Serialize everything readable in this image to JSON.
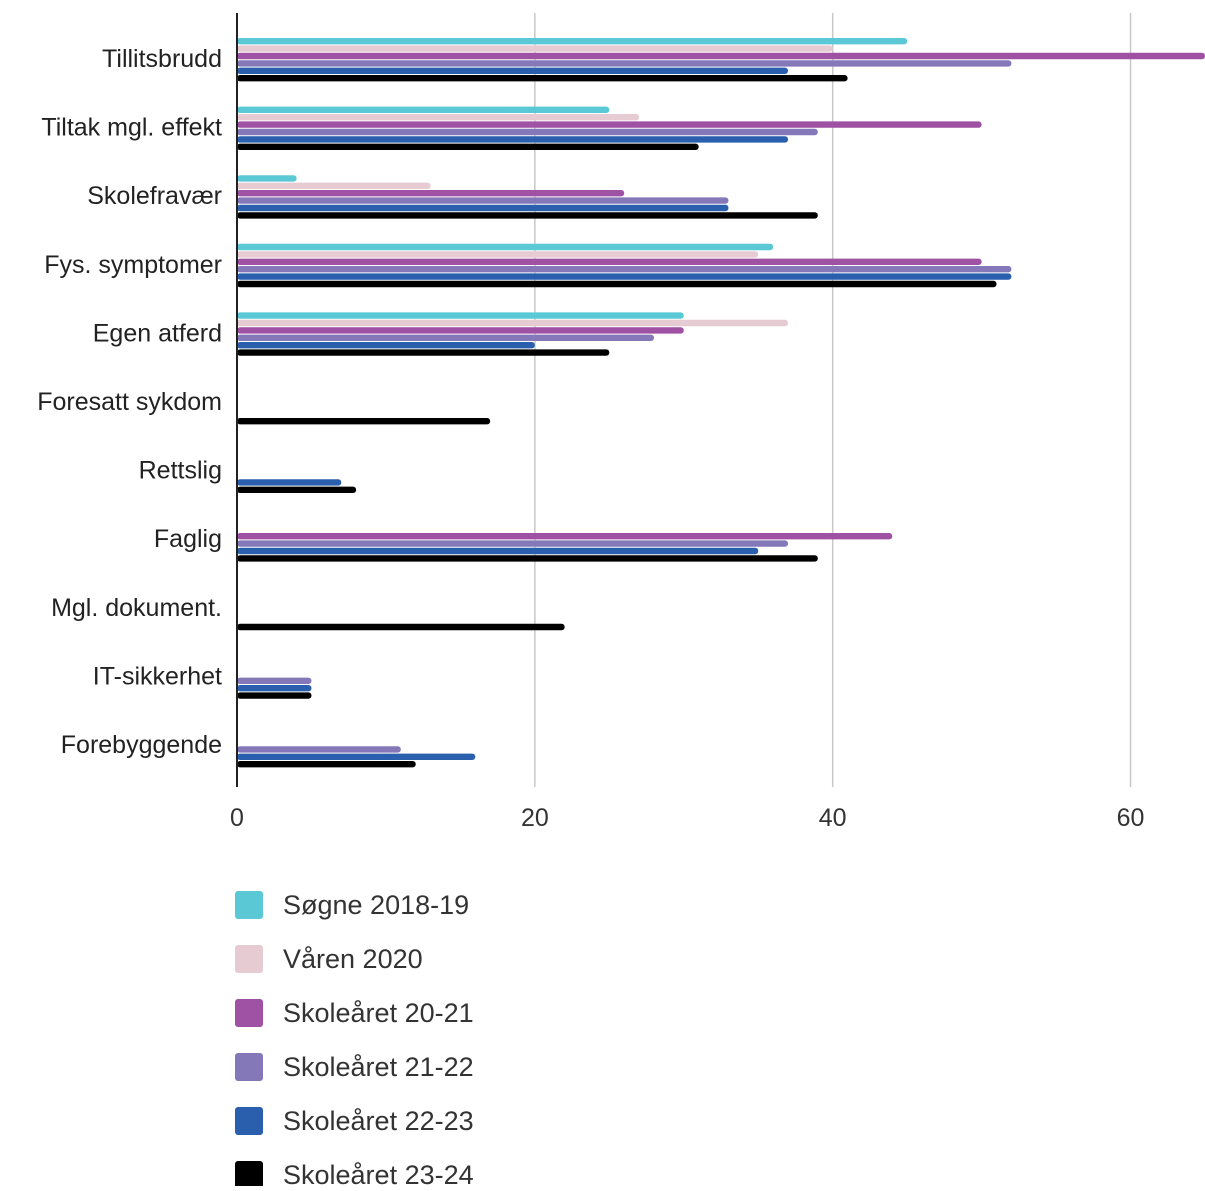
{
  "chart_data": {
    "type": "bar",
    "orientation": "horizontal",
    "title": "",
    "xlabel": "",
    "ylabel": "",
    "xlim": [
      0,
      65
    ],
    "x_ticks": [
      0,
      20,
      40,
      60
    ],
    "grid": "vertical",
    "legend_position": "bottom-left",
    "categories": [
      "Tillitsbrudd",
      "Tiltak mgl. effekt",
      "Skolefravær",
      "Fys. symptomer",
      "Egen atferd",
      "Foresatt sykdom",
      "Rettslig",
      "Faglig",
      "Mgl. dokument.",
      "IT-sikkerhet",
      "Forebyggende"
    ],
    "series": [
      {
        "name": "Søgne 2018-19",
        "color": "#5bc8d6",
        "values": [
          45,
          25,
          4,
          36,
          30,
          0,
          0,
          0,
          0,
          0,
          0
        ]
      },
      {
        "name": "Våren 2020",
        "color": "#e6cbd3",
        "values": [
          40,
          27,
          13,
          35,
          37,
          0,
          0,
          0,
          0,
          0,
          0
        ]
      },
      {
        "name": "Skoleåret 20-21",
        "color": "#9f52a4",
        "values": [
          65,
          50,
          26,
          50,
          30,
          0,
          0,
          44,
          0,
          0,
          0
        ]
      },
      {
        "name": "Skoleåret 21-22",
        "color": "#8478b8",
        "values": [
          52,
          39,
          33,
          52,
          28,
          0,
          0,
          37,
          0,
          5,
          11
        ]
      },
      {
        "name": "Skoleåret 22-23",
        "color": "#2a5fae",
        "values": [
          37,
          37,
          33,
          52,
          20,
          0,
          7,
          35,
          0,
          5,
          16
        ]
      },
      {
        "name": "Skoleåret 23-24",
        "color": "#000000",
        "values": [
          41,
          31,
          39,
          51,
          25,
          17,
          8,
          39,
          22,
          5,
          12
        ]
      }
    ]
  }
}
